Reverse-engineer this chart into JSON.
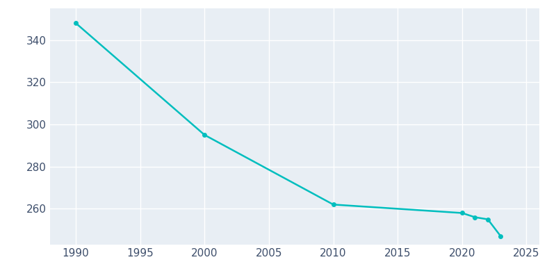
{
  "years": [
    1990,
    2000,
    2010,
    2020,
    2021,
    2022,
    2023
  ],
  "population": [
    348,
    295,
    262,
    258,
    256,
    255,
    247
  ],
  "line_color": "#00BEBE",
  "marker_color": "#00BEBE",
  "bg_color": "#E8EEF4",
  "outer_bg": "#FFFFFF",
  "grid_color": "#FFFFFF",
  "tick_label_color": "#3D4E6B",
  "xlim": [
    1988,
    2026
  ],
  "ylim": [
    243,
    355
  ],
  "yticks": [
    260,
    280,
    300,
    320,
    340
  ],
  "xticks": [
    1990,
    1995,
    2000,
    2005,
    2010,
    2015,
    2020,
    2025
  ],
  "marker_size": 4,
  "line_width": 1.8
}
